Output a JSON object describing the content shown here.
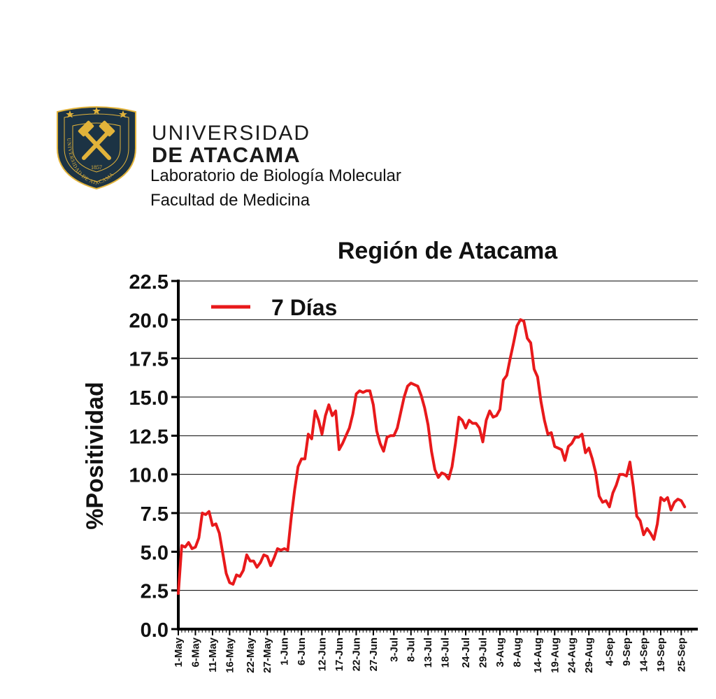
{
  "header": {
    "university_line1": "UNIVERSIDAD",
    "university_line2": "DE ATACAMA",
    "lab": "Laboratorio de Biología Molecular",
    "faculty": "Facultad de Medicina",
    "seal_text": "UNIVERSIDAD DE ATACAMA",
    "seal_year": "1857",
    "colors": {
      "navy": "#1c3344",
      "gold": "#e2b33a"
    }
  },
  "chart_data": {
    "type": "line",
    "title": "Región de Atacama",
    "xlabel": "",
    "ylabel": "%Positividad",
    "ylim": [
      0,
      22.5
    ],
    "yticks": [
      "0.0",
      "2.5",
      "5.0",
      "7.5",
      "10.0",
      "12.5",
      "15.0",
      "17.5",
      "20.0",
      "22.5"
    ],
    "grid": "horizontal",
    "legend_position": "top-left",
    "color": "#e8191b",
    "xticks": [
      {
        "day": 0,
        "label": "1-May"
      },
      {
        "day": 5,
        "label": "6-May"
      },
      {
        "day": 10,
        "label": "11-May"
      },
      {
        "day": 15,
        "label": "16-May"
      },
      {
        "day": 21,
        "label": "22-May"
      },
      {
        "day": 26,
        "label": "27-May"
      },
      {
        "day": 31,
        "label": "1-Jun"
      },
      {
        "day": 36,
        "label": "6-Jun"
      },
      {
        "day": 42,
        "label": "12-Jun"
      },
      {
        "day": 47,
        "label": "17-Jun"
      },
      {
        "day": 52,
        "label": "22-Jun"
      },
      {
        "day": 57,
        "label": "27-Jun"
      },
      {
        "day": 63,
        "label": "3-Jul"
      },
      {
        "day": 68,
        "label": "8-Jul"
      },
      {
        "day": 73,
        "label": "13-Jul"
      },
      {
        "day": 78,
        "label": "18-Jul"
      },
      {
        "day": 84,
        "label": "24-Jul"
      },
      {
        "day": 89,
        "label": "29-Jul"
      },
      {
        "day": 94,
        "label": "3-Aug"
      },
      {
        "day": 99,
        "label": "8-Aug"
      },
      {
        "day": 105,
        "label": "14-Aug"
      },
      {
        "day": 110,
        "label": "19-Aug"
      },
      {
        "day": 115,
        "label": "24-Aug"
      },
      {
        "day": 120,
        "label": "29-Aug"
      },
      {
        "day": 126,
        "label": "4-Sep"
      },
      {
        "day": 131,
        "label": "9-Sep"
      },
      {
        "day": 136,
        "label": "14-Sep"
      },
      {
        "day": 141,
        "label": "19-Sep"
      },
      {
        "day": 147,
        "label": "25-Sep"
      }
    ],
    "xmax_day": 150,
    "series": [
      {
        "name": "7 Días",
        "points": [
          [
            0,
            2.3
          ],
          [
            1,
            5.4
          ],
          [
            2,
            5.3
          ],
          [
            3,
            5.6
          ],
          [
            4,
            5.2
          ],
          [
            5,
            5.3
          ],
          [
            6,
            5.9
          ],
          [
            7,
            7.5
          ],
          [
            8,
            7.4
          ],
          [
            9,
            7.6
          ],
          [
            10,
            6.7
          ],
          [
            11,
            6.8
          ],
          [
            12,
            6.2
          ],
          [
            13,
            4.9
          ],
          [
            14,
            3.6
          ],
          [
            15,
            3.0
          ],
          [
            16,
            2.9
          ],
          [
            17,
            3.5
          ],
          [
            18,
            3.4
          ],
          [
            19,
            3.8
          ],
          [
            20,
            4.8
          ],
          [
            21,
            4.4
          ],
          [
            22,
            4.4
          ],
          [
            23,
            4.0
          ],
          [
            24,
            4.3
          ],
          [
            25,
            4.8
          ],
          [
            26,
            4.7
          ],
          [
            27,
            4.1
          ],
          [
            28,
            4.6
          ],
          [
            29,
            5.2
          ],
          [
            30,
            5.1
          ],
          [
            31,
            5.2
          ],
          [
            32,
            5.1
          ],
          [
            33,
            7.2
          ],
          [
            34,
            9.0
          ],
          [
            35,
            10.5
          ],
          [
            36,
            11.0
          ],
          [
            37,
            11.0
          ],
          [
            38,
            12.6
          ],
          [
            39,
            12.3
          ],
          [
            40,
            14.1
          ],
          [
            41,
            13.5
          ],
          [
            42,
            12.6
          ],
          [
            43,
            13.8
          ],
          [
            44,
            14.5
          ],
          [
            45,
            13.8
          ],
          [
            46,
            14.1
          ],
          [
            47,
            11.6
          ],
          [
            48,
            12.0
          ],
          [
            49,
            12.5
          ],
          [
            50,
            13.0
          ],
          [
            51,
            13.9
          ],
          [
            52,
            15.2
          ],
          [
            53,
            15.4
          ],
          [
            54,
            15.3
          ],
          [
            55,
            15.4
          ],
          [
            56,
            15.4
          ],
          [
            57,
            14.5
          ],
          [
            58,
            12.8
          ],
          [
            59,
            12.0
          ],
          [
            60,
            11.5
          ],
          [
            61,
            12.4
          ],
          [
            62,
            12.5
          ],
          [
            63,
            12.5
          ],
          [
            64,
            13.0
          ],
          [
            65,
            14.0
          ],
          [
            66,
            15.0
          ],
          [
            67,
            15.7
          ],
          [
            68,
            15.9
          ],
          [
            69,
            15.8
          ],
          [
            70,
            15.7
          ],
          [
            71,
            15.1
          ],
          [
            72,
            14.3
          ],
          [
            73,
            13.2
          ],
          [
            74,
            11.5
          ],
          [
            75,
            10.3
          ],
          [
            76,
            9.8
          ],
          [
            77,
            10.1
          ],
          [
            78,
            10.0
          ],
          [
            79,
            9.7
          ],
          [
            80,
            10.5
          ],
          [
            81,
            12.0
          ],
          [
            82,
            13.7
          ],
          [
            83,
            13.5
          ],
          [
            84,
            13.0
          ],
          [
            85,
            13.5
          ],
          [
            86,
            13.3
          ],
          [
            87,
            13.3
          ],
          [
            88,
            13.0
          ],
          [
            89,
            12.1
          ],
          [
            90,
            13.5
          ],
          [
            91,
            14.1
          ],
          [
            92,
            13.7
          ],
          [
            93,
            13.8
          ],
          [
            94,
            14.2
          ],
          [
            95,
            16.1
          ],
          [
            96,
            16.4
          ],
          [
            97,
            17.5
          ],
          [
            98,
            18.5
          ],
          [
            99,
            19.6
          ],
          [
            100,
            20.0
          ],
          [
            101,
            19.9
          ],
          [
            102,
            18.8
          ],
          [
            103,
            18.5
          ],
          [
            104,
            16.8
          ],
          [
            105,
            16.3
          ],
          [
            106,
            14.7
          ],
          [
            107,
            13.5
          ],
          [
            108,
            12.6
          ],
          [
            109,
            12.7
          ],
          [
            110,
            11.8
          ],
          [
            111,
            11.7
          ],
          [
            112,
            11.6
          ],
          [
            113,
            10.9
          ],
          [
            114,
            11.8
          ],
          [
            115,
            12.0
          ],
          [
            116,
            12.4
          ],
          [
            117,
            12.4
          ],
          [
            118,
            12.6
          ],
          [
            119,
            11.4
          ],
          [
            120,
            11.7
          ],
          [
            121,
            11.0
          ],
          [
            122,
            10.1
          ],
          [
            123,
            8.6
          ],
          [
            124,
            8.2
          ],
          [
            125,
            8.3
          ],
          [
            126,
            7.9
          ],
          [
            127,
            8.8
          ],
          [
            128,
            9.3
          ],
          [
            129,
            10.0
          ],
          [
            130,
            10.0
          ],
          [
            131,
            9.9
          ],
          [
            132,
            10.8
          ],
          [
            133,
            9.2
          ],
          [
            134,
            7.3
          ],
          [
            135,
            7.0
          ],
          [
            136,
            6.1
          ],
          [
            137,
            6.5
          ],
          [
            138,
            6.2
          ],
          [
            139,
            5.8
          ],
          [
            140,
            6.8
          ],
          [
            141,
            8.5
          ],
          [
            142,
            8.3
          ],
          [
            143,
            8.5
          ],
          [
            144,
            7.7
          ],
          [
            145,
            8.2
          ],
          [
            146,
            8.4
          ],
          [
            147,
            8.3
          ],
          [
            148,
            7.9
          ]
        ]
      }
    ]
  }
}
